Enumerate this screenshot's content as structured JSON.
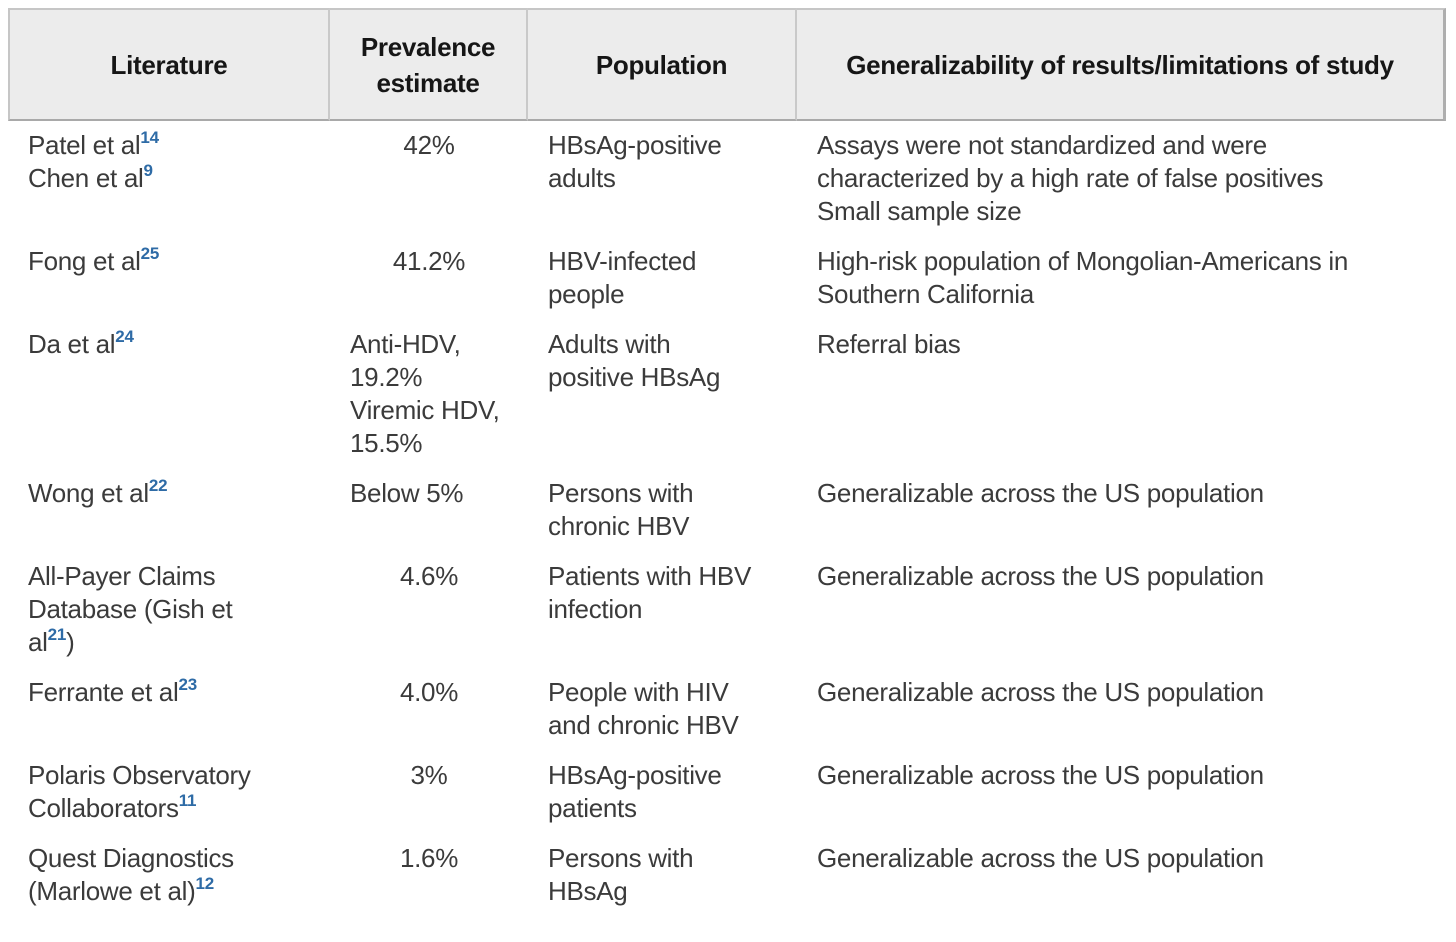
{
  "colors": {
    "header_background": "#ececec",
    "header_border": "#c6c6c6",
    "header_border_bottom": "#a9a9a9",
    "body_text": "#3b3b3b",
    "header_text": "#161616",
    "reference_blue": "#2e6ba6"
  },
  "table": {
    "headers": [
      "Literature",
      "Prevalence estimate",
      "Population",
      "Generalizability of results/limitations of study"
    ],
    "rows": [
      {
        "literature": [
          {
            "text": "Patel et al"
          },
          {
            "sup": "14"
          },
          {
            "break": true
          },
          {
            "text": "Chen et al"
          },
          {
            "sup": "9"
          }
        ],
        "prevalence": "42%",
        "prevalence_align": "center",
        "population": "HBsAg-positive\nadults",
        "generalizability": "Assays were not standardized and were\ncharacterized by a high rate of false positives\nSmall sample size"
      },
      {
        "literature": [
          {
            "text": "Fong et al"
          },
          {
            "sup": "25"
          }
        ],
        "prevalence": "41.2%",
        "prevalence_align": "center",
        "population": "HBV-infected\npeople",
        "generalizability": "High-risk population of Mongolian-Americans in\nSouthern California"
      },
      {
        "literature": [
          {
            "text": "Da et al"
          },
          {
            "sup": "24"
          }
        ],
        "prevalence": "Anti-HDV,\n19.2%\nViremic HDV,\n15.5%",
        "prevalence_align": "left",
        "population": "Adults with\npositive HBsAg",
        "generalizability": "Referral bias"
      },
      {
        "literature": [
          {
            "text": "Wong et al"
          },
          {
            "sup": "22"
          }
        ],
        "prevalence": "Below 5%",
        "prevalence_align": "left",
        "population": "Persons with\nchronic HBV",
        "generalizability": "Generalizable across the US population"
      },
      {
        "literature": [
          {
            "text": "All-Payer Claims"
          },
          {
            "break": true
          },
          {
            "text": "Database (Gish et"
          },
          {
            "break": true
          },
          {
            "text": "al"
          },
          {
            "sup": "21"
          },
          {
            "text": ")"
          }
        ],
        "prevalence": "4.6%",
        "prevalence_align": "center",
        "population": "Patients with HBV\ninfection",
        "generalizability": "Generalizable across the US population"
      },
      {
        "literature": [
          {
            "text": "Ferrante et al"
          },
          {
            "sup": "23"
          }
        ],
        "prevalence": "4.0%",
        "prevalence_align": "center",
        "population": "People with HIV\nand chronic HBV",
        "generalizability": "Generalizable across the US population"
      },
      {
        "literature": [
          {
            "text": "Polaris Observatory"
          },
          {
            "break": true
          },
          {
            "text": "Collaborators"
          },
          {
            "sup": "11"
          }
        ],
        "prevalence": "3%",
        "prevalence_align": "center",
        "population": "HBsAg-positive\npatients",
        "generalizability": "Generalizable across the US population"
      },
      {
        "literature": [
          {
            "text": "Quest Diagnostics"
          },
          {
            "break": true
          },
          {
            "text": "(Marlowe et al)"
          },
          {
            "sup": "12"
          }
        ],
        "prevalence": "1.6%",
        "prevalence_align": "center",
        "population": "Persons with\nHBsAg",
        "generalizability": "Generalizable across the US population"
      }
    ]
  }
}
